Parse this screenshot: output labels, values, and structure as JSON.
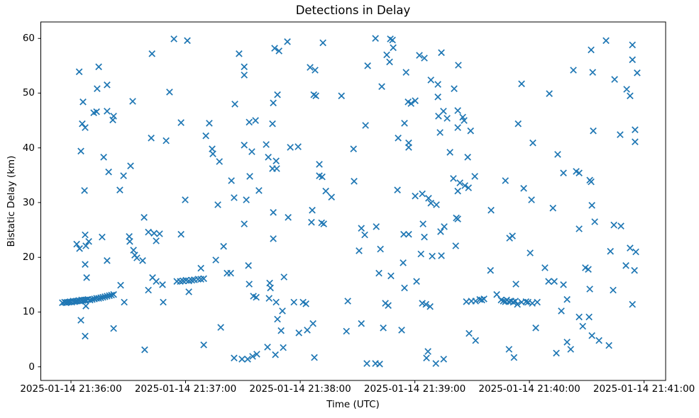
{
  "chart_data": {
    "type": "scatter",
    "title": "Detections in Delay",
    "xlabel": "Time (UTC)",
    "ylabel": "Bistatic Delay (km)",
    "grid": false,
    "legend": null,
    "marker": "x",
    "marker_color": "#1f77b4",
    "x_unit": "seconds after 2025-01-14 21:36:00 UTC",
    "xlim": [
      -15.8,
      311.3
    ],
    "ylim": [
      -2.5,
      63.0
    ],
    "x_ticks_seconds": [
      0,
      60,
      120,
      180,
      240,
      300
    ],
    "x_tick_labels": [
      "2025-01-14 21:36:00",
      "2025-01-14 21:37:00",
      "2025-01-14 21:38:00",
      "2025-01-14 21:39:00",
      "2025-01-14 21:40:00",
      "2025-01-14 21:41:00"
    ],
    "y_ticks": [
      0,
      10,
      20,
      30,
      40,
      50,
      60
    ],
    "points": [
      [
        53.9,
        59.9
      ],
      [
        60.9,
        59.6
      ],
      [
        42.4,
        57.2
      ],
      [
        88,
        57.2
      ],
      [
        14.5,
        54.8
      ],
      [
        4.3,
        53.9
      ],
      [
        90.7,
        54.8
      ],
      [
        90.7,
        53.3
      ],
      [
        13.7,
        50.8
      ],
      [
        18.9,
        51.5
      ],
      [
        51.6,
        50.2
      ],
      [
        6.3,
        48.4
      ],
      [
        32.3,
        48.5
      ],
      [
        85.8,
        48
      ],
      [
        11.9,
        46.4
      ],
      [
        13.4,
        46.6
      ],
      [
        18.9,
        46.7
      ],
      [
        22.3,
        45.8
      ],
      [
        21.9,
        45.1
      ],
      [
        5.9,
        44.4
      ],
      [
        7.4,
        43.7
      ],
      [
        57.6,
        44.6
      ],
      [
        72.4,
        44.5
      ],
      [
        93.3,
        44.7
      ],
      [
        96.6,
        45
      ],
      [
        42,
        41.8
      ],
      [
        49.8,
        41.3
      ],
      [
        70.6,
        42.2
      ],
      [
        73.9,
        39.8
      ],
      [
        74.3,
        38.9
      ],
      [
        77.7,
        37.5
      ],
      [
        90.7,
        40.5
      ],
      [
        5.2,
        39.4
      ],
      [
        17.1,
        38.3
      ],
      [
        31.2,
        36.7
      ],
      [
        27.5,
        34.9
      ],
      [
        19.7,
        35.6
      ],
      [
        7.1,
        32.2
      ],
      [
        25.6,
        32.3
      ],
      [
        59.8,
        30.5
      ],
      [
        84,
        34
      ],
      [
        85.4,
        30.9
      ],
      [
        91.8,
        30.5
      ],
      [
        159.4,
        60
      ],
      [
        167.2,
        59.9
      ],
      [
        168.3,
        59.7
      ],
      [
        113.3,
        59.4
      ],
      [
        106.6,
        58.2
      ],
      [
        108.9,
        57.7
      ],
      [
        131.9,
        59.2
      ],
      [
        168.7,
        58.3
      ],
      [
        165.3,
        57
      ],
      [
        182.4,
        56.9
      ],
      [
        185,
        56.4
      ],
      [
        193.9,
        57.4
      ],
      [
        166.8,
        55.7
      ],
      [
        155.3,
        55
      ],
      [
        125.2,
        54.7
      ],
      [
        127.8,
        54.2
      ],
      [
        175.4,
        53.8
      ],
      [
        202.8,
        55.1
      ],
      [
        188.4,
        52.4
      ],
      [
        192.1,
        51.6
      ],
      [
        162.7,
        51.2
      ],
      [
        200.6,
        50.8
      ],
      [
        108.1,
        49.7
      ],
      [
        105.9,
        48.2
      ],
      [
        127.1,
        49.7
      ],
      [
        128.2,
        49.5
      ],
      [
        141.6,
        49.5
      ],
      [
        192.1,
        49.3
      ],
      [
        176.5,
        48.4
      ],
      [
        178,
        48.1
      ],
      [
        180.2,
        48.6
      ],
      [
        192.4,
        45.8
      ],
      [
        195,
        46.7
      ],
      [
        196.9,
        45.4
      ],
      [
        202.5,
        46.8
      ],
      [
        105.5,
        44.4
      ],
      [
        154.2,
        44.1
      ],
      [
        174.6,
        44.5
      ],
      [
        193.2,
        42.8
      ],
      [
        171.3,
        41.8
      ],
      [
        176.8,
        40.9
      ],
      [
        176.8,
        40.1
      ],
      [
        102.2,
        40.6
      ],
      [
        94.7,
        39.3
      ],
      [
        114.8,
        40.1
      ],
      [
        118.9,
        40.2
      ],
      [
        147.9,
        39.8
      ],
      [
        198.4,
        39.2
      ],
      [
        103.3,
        38.3
      ],
      [
        107.4,
        37.6
      ],
      [
        105.5,
        36.2
      ],
      [
        107.7,
        36.2
      ],
      [
        130,
        37
      ],
      [
        130,
        34.9
      ],
      [
        131.5,
        34.7
      ],
      [
        93.6,
        34.8
      ],
      [
        148.2,
        33.9
      ],
      [
        170.9,
        32.3
      ],
      [
        98.4,
        32.2
      ],
      [
        133.4,
        32.1
      ],
      [
        136.4,
        31
      ],
      [
        180.2,
        31.2
      ],
      [
        183.9,
        31.6
      ],
      [
        187.2,
        30.8
      ],
      [
        188.4,
        29.9
      ],
      [
        191.3,
        29.6
      ],
      [
        200.2,
        34.4
      ],
      [
        202.5,
        32.1
      ],
      [
        280.1,
        59.6
      ],
      [
        272.3,
        57.9
      ],
      [
        293.9,
        58.8
      ],
      [
        293.9,
        56.1
      ],
      [
        263,
        54.2
      ],
      [
        273.1,
        53.8
      ],
      [
        296.4,
        53.7
      ],
      [
        284.6,
        52.5
      ],
      [
        235.9,
        51.7
      ],
      [
        290.9,
        50.7
      ],
      [
        292.7,
        49.5
      ],
      [
        250.4,
        49.9
      ],
      [
        205.1,
        45.6
      ],
      [
        205.8,
        45
      ],
      [
        202.5,
        43.7
      ],
      [
        209.2,
        43.1
      ],
      [
        234.1,
        44.4
      ],
      [
        273.4,
        43.1
      ],
      [
        287.5,
        42.4
      ],
      [
        295.3,
        43.3
      ],
      [
        295.3,
        41.1
      ],
      [
        241.8,
        40.9
      ],
      [
        254.8,
        38.8
      ],
      [
        207.7,
        38.3
      ],
      [
        257.8,
        35.4
      ],
      [
        264.5,
        35.7
      ],
      [
        266,
        35.4
      ],
      [
        271.6,
        34.1
      ],
      [
        272.3,
        33.8
      ],
      [
        211.4,
        34.8
      ],
      [
        227.4,
        34
      ],
      [
        237,
        32.6
      ],
      [
        203.6,
        33.6
      ],
      [
        206.2,
        33.1
      ],
      [
        208.1,
        32.7
      ],
      [
        241.1,
        30.5
      ],
      [
        76.9,
        29.6
      ],
      [
        38.3,
        27.3
      ],
      [
        90.7,
        26.1
      ],
      [
        7.4,
        24.1
      ],
      [
        9.3,
        22.9
      ],
      [
        7.8,
        22.1
      ],
      [
        16.3,
        23.7
      ],
      [
        3,
        22.4
      ],
      [
        4.5,
        21.6
      ],
      [
        30.5,
        23.8
      ],
      [
        30.8,
        22.9
      ],
      [
        40.5,
        24.6
      ],
      [
        43.5,
        24.4
      ],
      [
        46.4,
        24.3
      ],
      [
        44.6,
        23
      ],
      [
        57.6,
        24.2
      ],
      [
        32.7,
        21.3
      ],
      [
        33.4,
        20.4
      ],
      [
        34.5,
        19.9
      ],
      [
        37.5,
        19.4
      ],
      [
        79.9,
        22
      ],
      [
        75.8,
        19.5
      ],
      [
        7.4,
        18.7
      ],
      [
        18.9,
        19.4
      ],
      [
        68,
        18
      ],
      [
        81.7,
        17.1
      ],
      [
        83.6,
        17.1
      ],
      [
        92.9,
        18.5
      ],
      [
        8.2,
        16.3
      ],
      [
        26,
        14.9
      ],
      [
        42.7,
        16.3
      ],
      [
        44.6,
        15.6
      ],
      [
        47.9,
        15
      ],
      [
        40.5,
        14
      ],
      [
        61.7,
        13.7
      ],
      [
        22.3,
        13.2
      ],
      [
        27.9,
        11.8
      ],
      [
        7.8,
        11.1
      ],
      [
        48.3,
        11.8
      ],
      [
        5.2,
        8.5
      ],
      [
        22.3,
        7
      ],
      [
        7.4,
        5.6
      ],
      [
        38.6,
        3.1
      ],
      [
        69.5,
        4
      ],
      [
        78.4,
        7.2
      ],
      [
        85.4,
        1.6
      ],
      [
        89.5,
        1.4
      ],
      [
        92.5,
        1.4
      ],
      [
        -4.5,
        11.7
      ],
      [
        -3.3,
        11.8
      ],
      [
        -2.6,
        11.7
      ],
      [
        -1.9,
        11.8
      ],
      [
        -1.1,
        11.8
      ],
      [
        -0.4,
        11.9
      ],
      [
        0.4,
        11.8
      ],
      [
        1.1,
        12
      ],
      [
        1.9,
        11.9
      ],
      [
        2.6,
        12
      ],
      [
        3.3,
        12
      ],
      [
        4.1,
        12.1
      ],
      [
        4.8,
        12
      ],
      [
        5.6,
        12.2
      ],
      [
        6.3,
        12.1
      ],
      [
        7.1,
        12.2
      ],
      [
        7.8,
        12.2
      ],
      [
        8.9,
        12.3
      ],
      [
        10,
        12.2
      ],
      [
        11.1,
        12.3
      ],
      [
        12.3,
        12.4
      ],
      [
        13.4,
        12.5
      ],
      [
        14.5,
        12.5
      ],
      [
        15.6,
        12.6
      ],
      [
        16.7,
        12.7
      ],
      [
        17.8,
        12.8
      ],
      [
        18.9,
        12.9
      ],
      [
        20.1,
        13
      ],
      [
        21.2,
        13.1
      ],
      [
        55.4,
        15.6
      ],
      [
        57.2,
        15.6
      ],
      [
        58.7,
        15.7
      ],
      [
        60.2,
        15.8
      ],
      [
        61.7,
        15.7
      ],
      [
        63.2,
        15.8
      ],
      [
        64.6,
        15.9
      ],
      [
        66.5,
        16
      ],
      [
        68,
        16
      ],
      [
        69.5,
        16.1
      ],
      [
        105.9,
        28.2
      ],
      [
        113.7,
        27.3
      ],
      [
        126.3,
        28.6
      ],
      [
        125.9,
        26.4
      ],
      [
        131.2,
        26.3
      ],
      [
        132.3,
        26.1
      ],
      [
        152,
        25.3
      ],
      [
        153.8,
        24.1
      ],
      [
        159.8,
        25.6
      ],
      [
        174.2,
        24.2
      ],
      [
        176.8,
        24.2
      ],
      [
        184.3,
        26.1
      ],
      [
        185,
        23.7
      ],
      [
        193.5,
        24.7
      ],
      [
        195.4,
        25.6
      ],
      [
        201.7,
        27.2
      ],
      [
        105.9,
        23.4
      ],
      [
        150.8,
        21.2
      ],
      [
        162,
        21.5
      ],
      [
        173.9,
        19
      ],
      [
        183.2,
        20.6
      ],
      [
        189.1,
        20.2
      ],
      [
        193.9,
        20.3
      ],
      [
        201.4,
        22.1
      ],
      [
        161.2,
        17.1
      ],
      [
        167.5,
        16.6
      ],
      [
        111.5,
        16.4
      ],
      [
        174.6,
        14.4
      ],
      [
        180.9,
        15.6
      ],
      [
        104,
        15.3
      ],
      [
        104.4,
        14.4
      ],
      [
        93.3,
        15.1
      ],
      [
        95.5,
        12.9
      ],
      [
        97,
        12.7
      ],
      [
        103.7,
        12.5
      ],
      [
        107.4,
        11.8
      ],
      [
        116.7,
        11.8
      ],
      [
        121.5,
        11.8
      ],
      [
        123,
        11.5
      ],
      [
        144.9,
        12
      ],
      [
        164.6,
        11.6
      ],
      [
        166.1,
        11.2
      ],
      [
        183.9,
        11.6
      ],
      [
        185.8,
        11.4
      ],
      [
        188,
        11
      ],
      [
        110.7,
        10.2
      ],
      [
        108.1,
        8.7
      ],
      [
        126.7,
        7.9
      ],
      [
        110,
        6.6
      ],
      [
        119.3,
        6.2
      ],
      [
        123.7,
        6.7
      ],
      [
        152,
        7.9
      ],
      [
        163.5,
        7.1
      ],
      [
        173.1,
        6.7
      ],
      [
        144.2,
        6.5
      ],
      [
        102.9,
        3.6
      ],
      [
        111.1,
        3.5
      ],
      [
        107,
        2.2
      ],
      [
        95.1,
        1.9
      ],
      [
        97.3,
        2.3
      ],
      [
        127.4,
        1.7
      ],
      [
        154.9,
        0.6
      ],
      [
        159.4,
        0.6
      ],
      [
        161.6,
        0.5
      ],
      [
        186.9,
        2.8
      ],
      [
        186.1,
        1.6
      ],
      [
        191,
        0.6
      ],
      [
        195.1,
        1.4
      ],
      [
        219.9,
        28.6
      ],
      [
        252.3,
        29
      ],
      [
        272.7,
        29.5
      ],
      [
        202.5,
        27
      ],
      [
        274.2,
        26.5
      ],
      [
        266,
        25.2
      ],
      [
        284.2,
        25.9
      ],
      [
        287.9,
        25.7
      ],
      [
        229.6,
        23.5
      ],
      [
        231.1,
        23.9
      ],
      [
        240.4,
        20.8
      ],
      [
        282.4,
        21.1
      ],
      [
        292.7,
        21.7
      ],
      [
        295.7,
        21
      ],
      [
        219.6,
        17.6
      ],
      [
        248.1,
        18.1
      ],
      [
        269.3,
        18.1
      ],
      [
        270.8,
        17.8
      ],
      [
        290.5,
        18.5
      ],
      [
        295,
        17.6
      ],
      [
        232.9,
        15.1
      ],
      [
        250,
        15.6
      ],
      [
        253,
        15.6
      ],
      [
        257.8,
        15
      ],
      [
        271.6,
        14.2
      ],
      [
        283.8,
        14
      ],
      [
        259.7,
        12.3
      ],
      [
        293.9,
        11.4
      ],
      [
        256.7,
        10.2
      ],
      [
        266,
        9.1
      ],
      [
        271.2,
        9.1
      ],
      [
        267.9,
        7.4
      ],
      [
        272.7,
        5.7
      ],
      [
        276.4,
        4.8
      ],
      [
        281.6,
        3.9
      ],
      [
        259.7,
        4.5
      ],
      [
        261.6,
        3.2
      ],
      [
        254.1,
        2.5
      ],
      [
        229.3,
        3.2
      ],
      [
        231.9,
        1.7
      ],
      [
        208.4,
        6.1
      ],
      [
        211.8,
        4.8
      ],
      [
        243.3,
        7.1
      ],
      [
        207,
        11.9
      ],
      [
        209.6,
        12
      ],
      [
        211.8,
        12
      ],
      [
        214,
        12.3
      ],
      [
        215.1,
        12.2
      ],
      [
        216.2,
        12.4
      ],
      [
        222.9,
        13.2
      ],
      [
        225.2,
        12.2
      ],
      [
        226.3,
        12
      ],
      [
        227.4,
        11.9
      ],
      [
        228.1,
        12.2
      ],
      [
        229.3,
        11.9
      ],
      [
        230.4,
        12
      ],
      [
        231.5,
        11.8
      ],
      [
        232.6,
        12
      ],
      [
        233.7,
        11.4
      ],
      [
        235.9,
        11.8
      ],
      [
        238.2,
        11.9
      ],
      [
        239.3,
        11.8
      ],
      [
        241.5,
        11.6
      ],
      [
        244.1,
        11.8
      ]
    ]
  }
}
